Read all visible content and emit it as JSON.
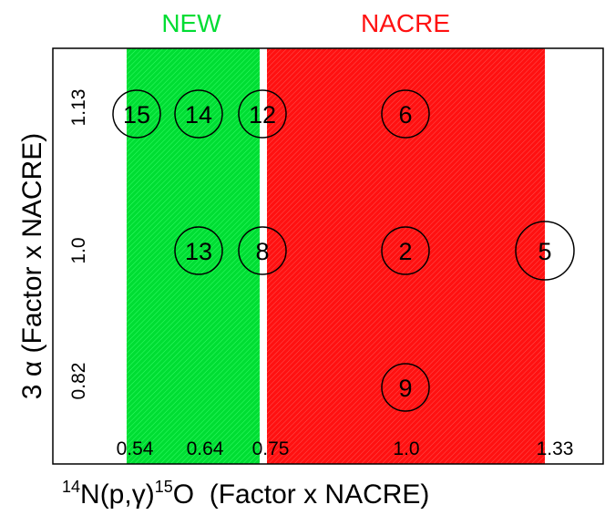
{
  "header": {
    "new_label": "NEW",
    "nacre_label": "NACRE",
    "new_color": "#00dd33",
    "nacre_color": "#ff1111"
  },
  "x_axis": {
    "ticks": [
      "0.54",
      "0.64",
      "0.75",
      "1.0",
      "1.33"
    ],
    "title_super_1": "14",
    "title_main": "N(p,γ)",
    "title_super_2": "15",
    "title_tail": "O  (Factor x NACRE)"
  },
  "y_axis": {
    "ticks": [
      "0.82",
      "1.0",
      "1.13"
    ],
    "title": "3 α (Factor x NACRE)"
  },
  "points": [
    {
      "label": "15",
      "x": "0.54",
      "y": "1.13"
    },
    {
      "label": "14",
      "x": "0.64",
      "y": "1.13"
    },
    {
      "label": "12",
      "x": "0.75",
      "y": "1.13"
    },
    {
      "label": "6",
      "x": "1.0",
      "y": "1.13"
    },
    {
      "label": "13",
      "x": "0.64",
      "y": "1.0"
    },
    {
      "label": "8",
      "x": "0.75",
      "y": "1.0"
    },
    {
      "label": "2",
      "x": "1.0",
      "y": "1.0"
    },
    {
      "label": "5",
      "x": "1.33",
      "y": "1.0"
    },
    {
      "label": "9",
      "x": "1.0",
      "y": "0.82"
    }
  ]
}
